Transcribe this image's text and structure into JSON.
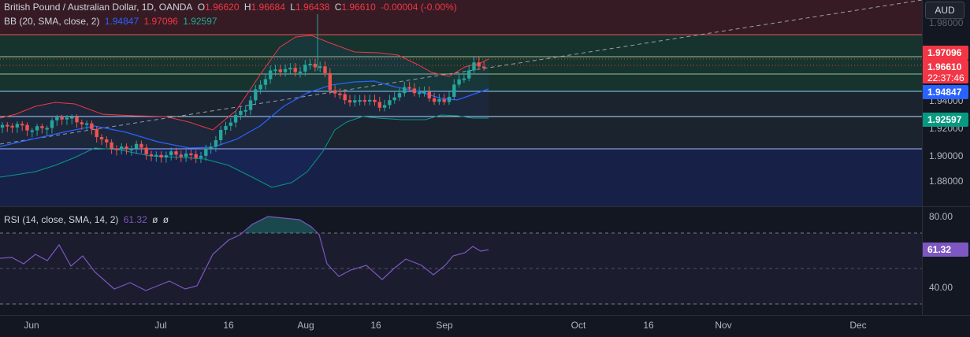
{
  "header": {
    "symbol": "British Pound / Australian Dollar, 1D, OANDA",
    "o_label": "O",
    "o_value": "1.96620",
    "h_label": "H",
    "h_value": "1.96684",
    "l_label": "L",
    "l_value": "1.96438",
    "c_label": "C",
    "c_value": "1.96610",
    "change": "-0.00004 (-0.00%)"
  },
  "bb_legend": {
    "name": "BB (20, SMA, close, 2)",
    "basis": "1.94847",
    "upper": "1.97096",
    "lower": "1.92597"
  },
  "rsi_legend": {
    "name": "RSI (14, close, SMA, 14, 2)",
    "value": "61.32",
    "extra1": "ø",
    "extra2": "ø"
  },
  "currency": "AUD",
  "price_axis": {
    "top_partial": "1.98000",
    "labels": [
      "1.94000",
      "1.92000",
      "1.90000",
      "1.88000"
    ]
  },
  "badges": {
    "upper": "1.97096",
    "last": "1.96610",
    "countdown": "22:37:46",
    "basis": "1.94847",
    "lower": "1.92597"
  },
  "rsi_axis": {
    "upper": "80.00",
    "lower": "40.00",
    "value_badge": "61.32"
  },
  "time_axis": [
    "Jun",
    "Jul",
    "16",
    "Aug",
    "16",
    "Sep",
    "Oct",
    "16",
    "Nov",
    "Dec"
  ],
  "colors": {
    "background": "#131722",
    "bull": "#26a69a",
    "bear": "#ef5350",
    "bb_basis": "#2962ff",
    "bb_upper": "#f23645",
    "bb_lower": "#089981",
    "rsi_line": "#7e57c2",
    "badge_upper": "#f23645",
    "badge_basis": "#2962ff",
    "badge_lower": "#089981",
    "badge_rsi": "#7e57c2"
  },
  "icons": [
    "dashed-trend-line",
    "horizontal-price-lines"
  ]
}
